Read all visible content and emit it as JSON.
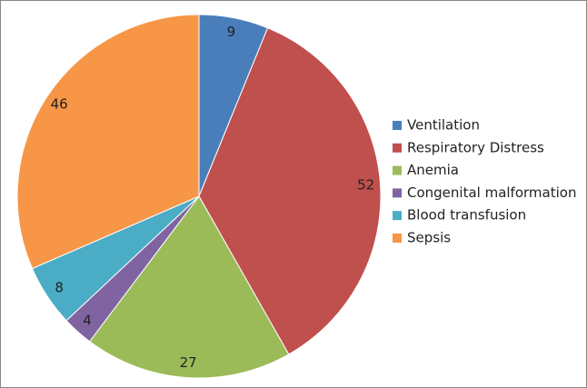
{
  "chart_data": {
    "type": "pie",
    "categories": [
      "Ventilation",
      "Respiratory Distress",
      "Anemia",
      "Congenital malformation",
      "Blood transfusion",
      "Sepsis"
    ],
    "values": [
      9,
      52,
      27,
      4,
      8,
      46
    ],
    "colors": [
      "#4a7ebb",
      "#c0504d",
      "#9bbb59",
      "#8064a2",
      "#4bacc6",
      "#f79646"
    ],
    "legend": "right"
  }
}
